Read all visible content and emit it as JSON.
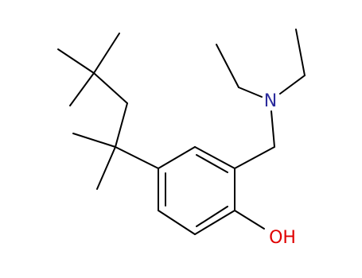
{
  "atoms": {
    "nitrogen": "N",
    "hydroxyl": "OH"
  }
}
